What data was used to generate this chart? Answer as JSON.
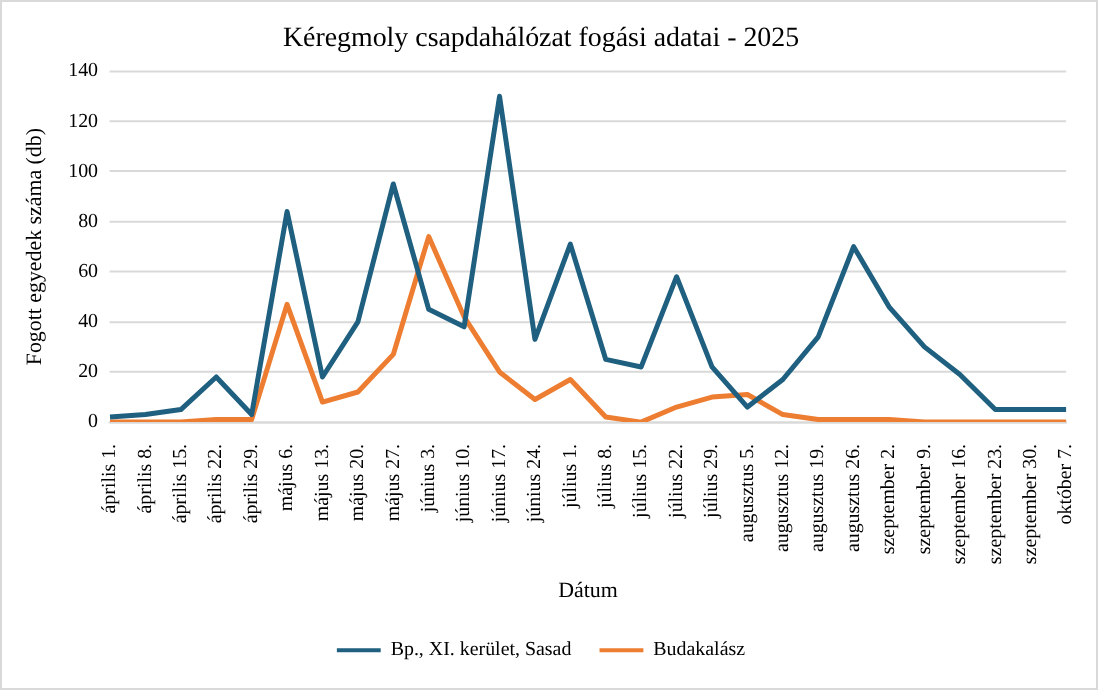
{
  "chart_data": {
    "type": "line",
    "title": "Kéregmoly csapdahálózat fogási adatai - 2025",
    "xlabel": "Dátum",
    "ylabel": "Fogott egyedek száma (db)",
    "categories": [
      "április 1.",
      "április 8.",
      "április 15.",
      "április 22.",
      "április 29.",
      "május 6.",
      "május 13.",
      "május 20.",
      "május 27.",
      "június 3.",
      "június 10.",
      "június 17.",
      "június 24.",
      "július 1.",
      "július 8.",
      "július 15.",
      "július 22.",
      "július 29.",
      "augusztus 5.",
      "augusztus 12.",
      "augusztus 19.",
      "augusztus 26.",
      "szeptember 2.",
      "szeptember 9.",
      "szeptember 16.",
      "szeptember 23.",
      "szeptember 30.",
      "október 7."
    ],
    "series": [
      {
        "name": "Bp., XI. kerület, Sasad",
        "color": "#1f5f7f",
        "values": [
          2,
          3,
          5,
          18,
          3,
          84,
          18,
          40,
          95,
          45,
          38,
          130,
          33,
          71,
          25,
          22,
          58,
          22,
          6,
          17,
          34,
          70,
          46,
          30,
          19,
          5,
          5,
          5
        ]
      },
      {
        "name": "Budakalász",
        "color": "#ed7d31",
        "values": [
          0,
          0,
          0,
          1,
          1,
          47,
          8,
          12,
          27,
          74,
          42,
          20,
          9,
          17,
          2,
          0,
          6,
          10,
          11,
          3,
          1,
          1,
          1,
          0,
          0,
          0,
          0,
          0
        ]
      }
    ],
    "ylim": [
      0,
      140
    ],
    "yticks": [
      0,
      20,
      40,
      60,
      80,
      100,
      120,
      140
    ],
    "grid": "y",
    "legend": "bottom",
    "marker": "none",
    "line_style": "solid"
  }
}
